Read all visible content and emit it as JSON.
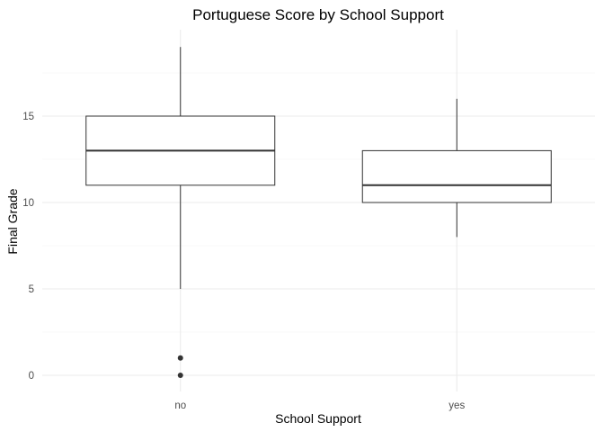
{
  "chart_data": {
    "type": "boxplot",
    "title": "Portuguese Score by School Support",
    "xlabel": "School Support",
    "ylabel": "Final Grade",
    "categories": [
      "no",
      "yes"
    ],
    "ylim": [
      -1,
      19.5
    ],
    "yticks": [
      0,
      5,
      10,
      15
    ],
    "grid": true,
    "boxes": [
      {
        "category": "no",
        "whisker_low": 5,
        "q1": 11,
        "median": 13,
        "q3": 15,
        "whisker_high": 19,
        "outliers": [
          0,
          1
        ]
      },
      {
        "category": "yes",
        "whisker_low": 8,
        "q1": 10,
        "median": 11,
        "q3": 13,
        "whisker_high": 16,
        "outliers": []
      }
    ]
  }
}
